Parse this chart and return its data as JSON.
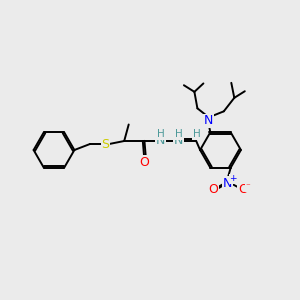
{
  "bg": "#ebebeb",
  "bond_color": "#000000",
  "S_color": "#cccc00",
  "O_color": "#ff0000",
  "N_blue": "#0000ff",
  "N_teal": "#4d9999",
  "lw": 1.4,
  "fs": 8.5,
  "fs_small": 6.5,
  "figsize": [
    3.0,
    3.0
  ],
  "dpi": 100,
  "xlim": [
    0,
    10
  ],
  "ylim": [
    0,
    10
  ]
}
